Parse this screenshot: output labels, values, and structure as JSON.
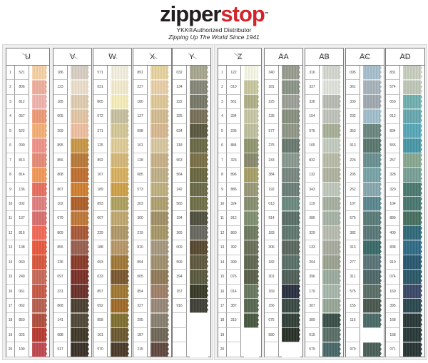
{
  "brand": {
    "logo_left": "zipper",
    "logo_right": "stop",
    "trademark": "™",
    "tagline1": "YKK®Authorized Distributor",
    "tagline2": "Zipping Up The World Since 1941",
    "colors": {
      "dark": "#231f20",
      "red": "#d6232a"
    }
  },
  "row_numbers": [
    "1",
    "2",
    "3",
    "4",
    "5",
    "6",
    "7",
    "8",
    "9",
    "10",
    "11",
    "12",
    "13",
    "14",
    "15",
    "16",
    "17",
    "18",
    "19",
    "20"
  ],
  "panels": [
    {
      "columns": [
        {
          "name": "U",
          "codes": [
            "521",
            "806",
            "812",
            "057",
            "522",
            "090",
            "813",
            "814",
            "136",
            "002",
            "137",
            "816",
            "138",
            "060",
            "249",
            "061",
            "062",
            "850",
            "025",
            "199"
          ],
          "colors": [
            "#f6d2a8",
            "#eeb09e",
            "#f2b4ae",
            "#ee9c78",
            "#f4b077",
            "#f0948a",
            "#e68c78",
            "#f29a5a",
            "#e87060",
            "#e28080",
            "#d97070",
            "#f06a58",
            "#e85a40",
            "#d8583e",
            "#c86a5a",
            "#c85a48",
            "#b86050",
            "#b05040",
            "#b83a30",
            "#c04a50"
          ]
        },
        {
          "name": "V",
          "codes": [
            "186",
            "123",
            "185",
            "005",
            "209",
            "895",
            "856",
            "808",
            "807",
            "102",
            "079",
            "809",
            "855",
            "236",
            "097",
            "331",
            "868",
            "141",
            "088",
            "917"
          ],
          "colors": [
            "#d8d0c4",
            "#ece0cc",
            "#e0ceb0",
            "#e4c6a6",
            "#eec0a0",
            "#c89848",
            "#b87a38",
            "#c07030",
            "#d08030",
            "#b06028",
            "#c07838",
            "#a85a38",
            "#9a6050",
            "#8a3a28",
            "#7a3028",
            "#6a3028",
            "#4a4030",
            "#504838",
            "#403828",
            "#3a3028"
          ]
        },
        {
          "name": "W",
          "codes": [
            "571",
            "031",
            "805",
            "572",
            "371",
            "125",
            "892",
            "167",
            "189",
            "893",
            "007",
            "229",
            "188",
            "093",
            "033",
            "857",
            "092",
            "858",
            "161",
            "570"
          ],
          "colors": [
            "#f4f0e0",
            "#f4ecd0",
            "#f8eebc",
            "#c8c0a0",
            "#d4c898",
            "#e0cc98",
            "#d4b878",
            "#d8b060",
            "#d0a048",
            "#b0a060",
            "#c0a870",
            "#b09868",
            "#b89868",
            "#a07838",
            "#7a5830",
            "#a07830",
            "#a06a28",
            "#807030",
            "#6a5830",
            "#4a3a28"
          ]
        },
        {
          "name": "X",
          "codes": [
            "891",
            "227",
            "180",
            "127",
            "098",
            "101",
            "128",
            "085",
            "573",
            "203",
            "300",
            "219",
            "810",
            "894",
            "005",
            "854",
            "327",
            "295",
            "187",
            "215"
          ],
          "colors": [
            "#e8d4a0",
            "#e8d0a8",
            "#e0c898",
            "#d4bc90",
            "#d8b890",
            "#d8c8a0",
            "#c8b088",
            "#c0b088",
            "#c0b080",
            "#b0a070",
            "#a09068",
            "#a89868",
            "#a89880",
            "#a09070",
            "#907a58",
            "#a08068",
            "#988878",
            "#888070",
            "#706858",
            "#604840"
          ]
        },
        {
          "name": "Y",
          "codes": [
            "032",
            "134",
            "222",
            "325",
            "034",
            "318",
            "563",
            "564",
            "242",
            "565",
            "194",
            "365",
            "009",
            "599",
            "394",
            "157",
            "916",
            "",
            "",
            ""
          ],
          "colors": [
            "#a8a890",
            "#888878",
            "#787868",
            "#787058",
            "#5a5840",
            "#6a6a48",
            "#7a7048",
            "#6a6840",
            "#6a6a48",
            "#707048",
            "#505040",
            "#686860",
            "#584830",
            "#605840",
            "#5a5a40",
            "#3a3a28",
            "#404038",
            null,
            null,
            null
          ]
        }
      ]
    },
    {
      "columns": [
        {
          "name": "Z",
          "codes": [
            "122",
            "010",
            "561",
            "334",
            "235",
            "884",
            "323",
            "896",
            "886",
            "324",
            "912",
            "860",
            "392",
            "399",
            "076",
            "014",
            "387",
            "315",
            "",
            ""
          ],
          "colors": [
            "#f8f8e8",
            "#c8c8a0",
            "#b0b088",
            "#c8c8a8",
            "#c0c0a0",
            "#909870",
            "#8a8a70",
            "#a8a068",
            "#9a9a78",
            "#889070",
            "#809070",
            "#707a60",
            "#6a7058",
            "#606850",
            "#5a6048",
            "#687a60",
            "#586850",
            "#485840",
            null,
            null
          ]
        },
        {
          "name": "AA",
          "codes": [
            "340",
            "181",
            "225",
            "135",
            "577",
            "275",
            "243",
            "384",
            "192",
            "013",
            "914",
            "183",
            "306",
            "182",
            "301",
            "169",
            "156",
            "075",
            "580",
            ""
          ],
          "colors": [
            "#989c90",
            "#8c9488",
            "#9ca098",
            "#889080",
            "#909888",
            "#6a7a70",
            "#8a9a90",
            "#788880",
            "#6a8078",
            "#6a8a80",
            "#5a7068",
            "#607870",
            "#5a6860",
            "#587068",
            "#506058",
            "#2a3040",
            "#3a4a44",
            "#304038",
            "#283028",
            null
          ]
        },
        {
          "name": "AB",
          "codes": [
            "316",
            "337",
            "336",
            "154",
            "576",
            "165",
            "832",
            "132",
            "343",
            "119",
            "386",
            "329",
            "133",
            "204",
            "396",
            "179",
            "307",
            "389",
            "015",
            "579"
          ],
          "colors": [
            "#d4d8d0",
            "#e0e4dc",
            "#b8bcb4",
            "#c0c4bc",
            "#a8b098",
            "#c4ccc0",
            "#b8bca8",
            "#b0b4a0",
            "#c0c8bc",
            "#a8b0a0",
            "#a8b4a8",
            "#b8bcb0",
            "#a8aca0",
            "#9ca490",
            "#9caca0",
            "#a8b8ac",
            "#98a898",
            "#3a5048",
            "#5a7068",
            "#4a6868"
          ]
        },
        {
          "name": "AC",
          "codes": [
            "095",
            "361",
            "330",
            "232",
            "353",
            "913",
            "226",
            "205",
            "262",
            "107",
            "575",
            "382",
            "313",
            "277",
            "311",
            "575",
            "155",
            "116",
            "",
            "979"
          ],
          "colors": [
            "#a8c0cc",
            "#a8b4bc",
            "#a0aab0",
            "#a0c0cc",
            "#6a8880",
            "#5a7870",
            "#6a9090",
            "#78a4a8",
            "#88a8b0",
            "#5a8890",
            "#5a7c78",
            "#5a7878",
            "#3a6a68",
            "#5a7478",
            "#50686c",
            "#5a7068",
            "#4a5850",
            "#4a6a68",
            null,
            "#4a6058"
          ]
        },
        {
          "name": "AD",
          "codes": [
            "831",
            "574",
            "050",
            "012",
            "834",
            "555",
            "257",
            "328",
            "320",
            "104",
            "889",
            "400",
            "838",
            "910",
            "074",
            "160",
            "395",
            "168",
            "158",
            "071"
          ],
          "colors": [
            "#c8d0c0",
            "#c0c8b8",
            "#70b0b0",
            "#68a8b0",
            "#58a8b8",
            "#4898a8",
            "#88a890",
            "#78a098",
            "#4a7a70",
            "#487870",
            "#487060",
            "#306a78",
            "#306c88",
            "#285870",
            "#2a5868",
            "#3a4868",
            "#2a4850",
            "#2a3838",
            "#283838",
            "#283434"
          ]
        }
      ]
    }
  ]
}
